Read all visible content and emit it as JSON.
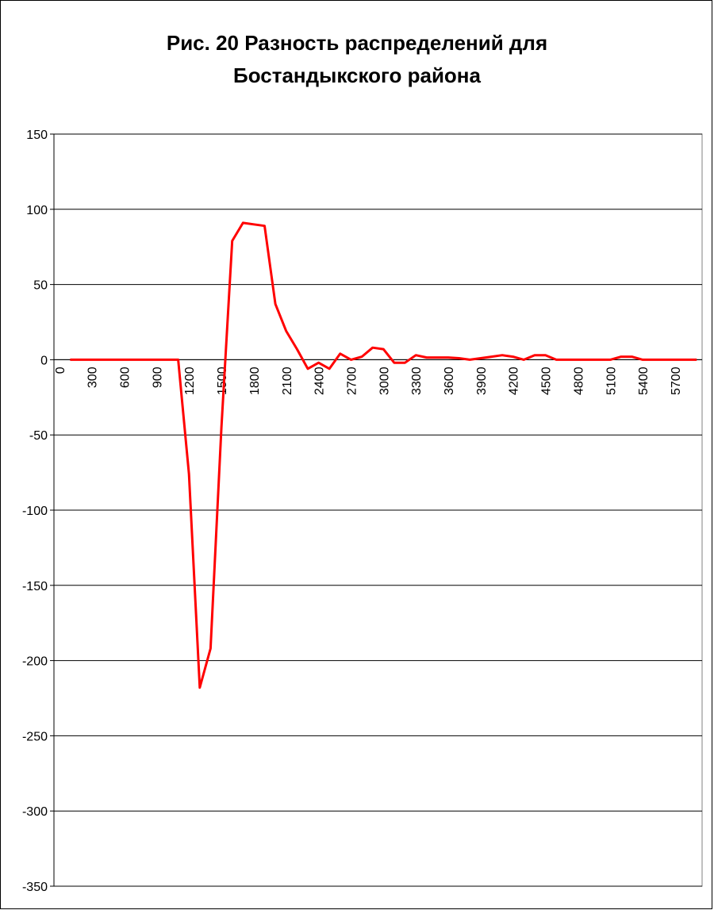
{
  "chart_data": {
    "type": "line",
    "title": [
      "Рис. 20 Разность распределений для",
      "Бостандыкского района"
    ],
    "categories": [
      "0",
      null,
      null,
      "300",
      null,
      null,
      "600",
      null,
      null,
      "900",
      null,
      null,
      "1200",
      null,
      null,
      "1500",
      null,
      null,
      "1800",
      null,
      null,
      "2100",
      null,
      null,
      "2400",
      null,
      null,
      "2700",
      null,
      null,
      "3000",
      null,
      null,
      "3300",
      null,
      null,
      "3600",
      null,
      null,
      "3900",
      null,
      null,
      "4200",
      null,
      null,
      "4500",
      null,
      null,
      "4800",
      null,
      null,
      "5100",
      null,
      null,
      "5400",
      null,
      null,
      "5700",
      null,
      null
    ],
    "series": [
      {
        "color": "#ff0000",
        "values": [
          null,
          0,
          0,
          0,
          0,
          0,
          0,
          0,
          0,
          0,
          0,
          0,
          -76,
          -218,
          -192,
          -45,
          79,
          91,
          90,
          89,
          37,
          19,
          7,
          -6,
          -2,
          -6,
          4,
          0,
          2,
          8,
          7,
          -2,
          -2,
          3,
          1.5,
          1.5,
          1.5,
          1,
          0,
          1,
          2,
          3,
          2,
          0,
          3,
          3,
          0,
          0,
          0,
          0,
          0,
          0,
          2,
          2,
          0,
          0,
          0,
          0,
          0,
          0
        ]
      }
    ],
    "ylim": [
      -350,
      150
    ],
    "yticks": [
      -350,
      -300,
      -250,
      -200,
      -150,
      -100,
      -50,
      0,
      50,
      100,
      150
    ],
    "grid": true
  }
}
